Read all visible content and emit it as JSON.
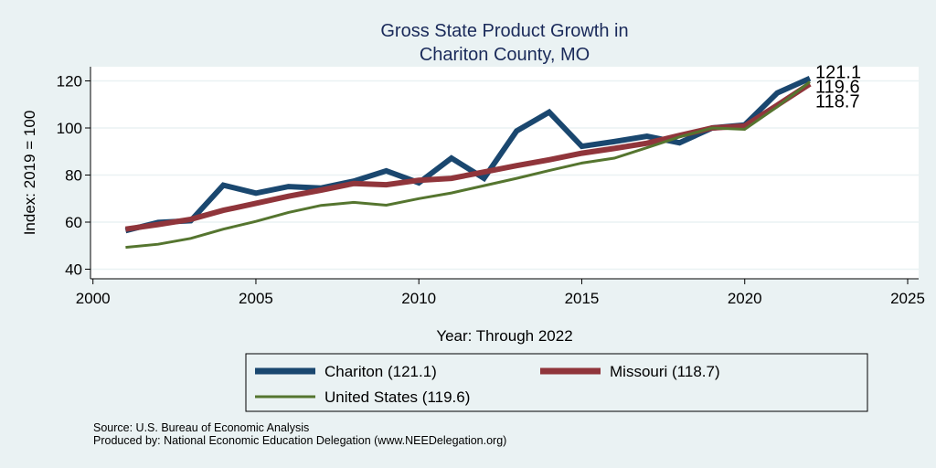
{
  "chart_data": {
    "type": "line",
    "title": "Gross State Product Growth in",
    "subtitle": "Chariton County, MO",
    "xlabel": "Year: Through 2022",
    "ylabel": "Index: 2019 = 100",
    "xlim": [
      2000,
      2025
    ],
    "ylim": [
      40,
      120
    ],
    "xticks": [
      2000,
      2005,
      2010,
      2015,
      2020,
      2025
    ],
    "yticks": [
      40,
      60,
      80,
      100,
      120
    ],
    "grid": true,
    "legend_position": "bottom",
    "x": [
      2001,
      2002,
      2003,
      2004,
      2005,
      2006,
      2007,
      2008,
      2009,
      2010,
      2011,
      2012,
      2013,
      2014,
      2015,
      2016,
      2017,
      2018,
      2019,
      2020,
      2021,
      2022
    ],
    "series": [
      {
        "name": "Chariton",
        "legend_label": "Chariton  (121.1)",
        "color": "#1a476f",
        "end_label": "121.1",
        "values": [
          56.4,
          59.9,
          60.6,
          75.7,
          72.3,
          75.1,
          74.5,
          77.4,
          81.8,
          76.7,
          87.2,
          78.6,
          98.7,
          106.7,
          92.2,
          94.2,
          96.5,
          93.7,
          100.0,
          101.3,
          114.9,
          121.1
        ]
      },
      {
        "name": "Missouri",
        "legend_label": "Missouri (118.7)",
        "color": "#90353b",
        "end_label": "118.7",
        "values": [
          57.0,
          59.0,
          61.2,
          65.0,
          68.0,
          71.0,
          73.6,
          76.4,
          75.9,
          77.8,
          78.6,
          81.3,
          84.0,
          86.5,
          89.3,
          91.3,
          93.5,
          96.8,
          100.0,
          100.8,
          109.7,
          118.7
        ]
      },
      {
        "name": "United States",
        "legend_label": "United States (119.6)",
        "color": "#55752f",
        "end_label": "119.6",
        "values": [
          49.3,
          50.6,
          53.1,
          57.0,
          60.3,
          64.1,
          67.1,
          68.4,
          67.2,
          70.0,
          72.4,
          75.5,
          78.6,
          81.9,
          85.1,
          87.2,
          91.6,
          96.2,
          100.0,
          99.4,
          109.0,
          119.6
        ]
      }
    ]
  },
  "footer": {
    "source": "Source: U.S. Bureau of Economic Analysis",
    "produced_by": "Produced by: National Economic Education Delegation (www.NEEDelegation.org)"
  }
}
